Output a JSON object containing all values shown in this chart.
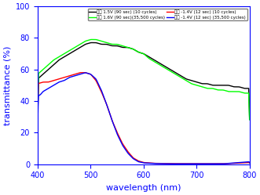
{
  "title": "",
  "xlabel": "wavelength (nm)",
  "ylabel": "transmittance (%)",
  "xlim": [
    400,
    800
  ],
  "ylim": [
    0,
    100
  ],
  "xticks": [
    400,
    500,
    600,
    700,
    800
  ],
  "yticks": [
    0,
    20,
    40,
    60,
    80,
    100
  ],
  "legend": [
    "젬제 1.5V (90 sec) (10 cycles)",
    "젬제 1.6V (90 sec)(35,500 cycles)",
    "색요 -1.4V (12 sec) (10 cycles)",
    "색요 -1.4V (12 sec) (35,500 cycles)"
  ],
  "colors": [
    "black",
    "lime",
    "red",
    "blue"
  ],
  "background_color": "#ffffff",
  "xlabel_color": "blue",
  "ylabel_color": "blue",
  "xtick_color": "blue",
  "ytick_color": "blue",
  "axis_color": "blue",
  "black_curve": [
    [
      400,
      54
    ],
    [
      410,
      57
    ],
    [
      420,
      60
    ],
    [
      430,
      63
    ],
    [
      440,
      66
    ],
    [
      450,
      68
    ],
    [
      460,
      70
    ],
    [
      470,
      72
    ],
    [
      480,
      74
    ],
    [
      490,
      76
    ],
    [
      500,
      77
    ],
    [
      510,
      77
    ],
    [
      520,
      76
    ],
    [
      530,
      76
    ],
    [
      540,
      75
    ],
    [
      550,
      75
    ],
    [
      560,
      74
    ],
    [
      570,
      74
    ],
    [
      580,
      73
    ],
    [
      590,
      71
    ],
    [
      600,
      70
    ],
    [
      610,
      68
    ],
    [
      620,
      66
    ],
    [
      630,
      64
    ],
    [
      640,
      62
    ],
    [
      650,
      60
    ],
    [
      660,
      58
    ],
    [
      670,
      56
    ],
    [
      680,
      54
    ],
    [
      690,
      53
    ],
    [
      700,
      52
    ],
    [
      710,
      51
    ],
    [
      720,
      51
    ],
    [
      730,
      50
    ],
    [
      740,
      50
    ],
    [
      750,
      50
    ],
    [
      760,
      50
    ],
    [
      770,
      49
    ],
    [
      780,
      49
    ],
    [
      790,
      48
    ],
    [
      800,
      48
    ]
  ],
  "green_curve": [
    [
      400,
      57
    ],
    [
      410,
      60
    ],
    [
      420,
      63
    ],
    [
      430,
      66
    ],
    [
      440,
      68
    ],
    [
      450,
      70
    ],
    [
      460,
      72
    ],
    [
      470,
      74
    ],
    [
      480,
      76
    ],
    [
      490,
      78
    ],
    [
      500,
      79
    ],
    [
      510,
      79
    ],
    [
      520,
      78
    ],
    [
      530,
      77
    ],
    [
      540,
      76
    ],
    [
      550,
      76
    ],
    [
      560,
      75
    ],
    [
      570,
      74
    ],
    [
      580,
      73
    ],
    [
      590,
      71
    ],
    [
      600,
      70
    ],
    [
      610,
      67
    ],
    [
      620,
      65
    ],
    [
      630,
      63
    ],
    [
      640,
      61
    ],
    [
      650,
      59
    ],
    [
      660,
      57
    ],
    [
      670,
      55
    ],
    [
      680,
      53
    ],
    [
      690,
      51
    ],
    [
      700,
      50
    ],
    [
      710,
      49
    ],
    [
      720,
      48
    ],
    [
      730,
      48
    ],
    [
      740,
      47
    ],
    [
      750,
      47
    ],
    [
      760,
      46
    ],
    [
      770,
      46
    ],
    [
      780,
      46
    ],
    [
      790,
      45
    ],
    [
      800,
      45
    ]
  ],
  "red_curve": [
    [
      400,
      51
    ],
    [
      410,
      52
    ],
    [
      415,
      52
    ],
    [
      420,
      52
    ],
    [
      430,
      53
    ],
    [
      440,
      54
    ],
    [
      450,
      55
    ],
    [
      460,
      56
    ],
    [
      470,
      57
    ],
    [
      480,
      58
    ],
    [
      490,
      58
    ],
    [
      500,
      57
    ],
    [
      510,
      53
    ],
    [
      520,
      46
    ],
    [
      530,
      38
    ],
    [
      540,
      28
    ],
    [
      550,
      20
    ],
    [
      560,
      13
    ],
    [
      570,
      8
    ],
    [
      580,
      4
    ],
    [
      590,
      2
    ],
    [
      600,
      1
    ],
    [
      620,
      0.5
    ],
    [
      650,
      0.3
    ],
    [
      700,
      0.2
    ],
    [
      750,
      0.2
    ],
    [
      800,
      1
    ]
  ],
  "blue_curve": [
    [
      400,
      43
    ],
    [
      405,
      44
    ],
    [
      410,
      46
    ],
    [
      415,
      47
    ],
    [
      420,
      48
    ],
    [
      430,
      50
    ],
    [
      440,
      52
    ],
    [
      450,
      53
    ],
    [
      460,
      55
    ],
    [
      470,
      56
    ],
    [
      480,
      57
    ],
    [
      490,
      58
    ],
    [
      500,
      57
    ],
    [
      510,
      54
    ],
    [
      520,
      47
    ],
    [
      530,
      38
    ],
    [
      540,
      28
    ],
    [
      550,
      19
    ],
    [
      560,
      12
    ],
    [
      570,
      7
    ],
    [
      580,
      3.5
    ],
    [
      590,
      1.5
    ],
    [
      600,
      0.8
    ],
    [
      620,
      0.4
    ],
    [
      650,
      0.2
    ],
    [
      700,
      0.2
    ],
    [
      750,
      0.2
    ],
    [
      800,
      1.5
    ]
  ]
}
